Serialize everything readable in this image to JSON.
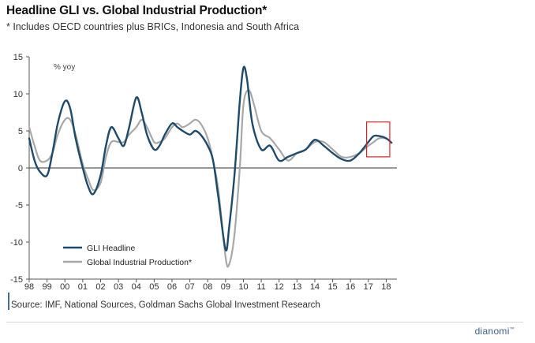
{
  "header": {
    "title": "Headline GLI vs. Global Industrial Production*",
    "subtitle": "* Includes OECD countries plus BRICs, Indonesia and South Africa"
  },
  "footer": {
    "source": "Source: IMF, National Sources, Goldman Sachs Global Investment Research",
    "brand": "dianomi",
    "brand_mark": "™"
  },
  "chart_data": {
    "type": "line",
    "title": "Headline GLI vs. Global Industrial Production*",
    "unit_label": "% yoy",
    "ylim": [
      -15,
      15
    ],
    "yticks": [
      15,
      10,
      5,
      0,
      -5,
      -10,
      -15
    ],
    "xlim": [
      1998.0,
      2018.6
    ],
    "xticks": [
      {
        "x": 1998,
        "label": "98"
      },
      {
        "x": 1999,
        "label": "99"
      },
      {
        "x": 2000,
        "label": "00"
      },
      {
        "x": 2001,
        "label": "01"
      },
      {
        "x": 2002,
        "label": "02"
      },
      {
        "x": 2003,
        "label": "03"
      },
      {
        "x": 2004,
        "label": "04"
      },
      {
        "x": 2005,
        "label": "05"
      },
      {
        "x": 2006,
        "label": "06"
      },
      {
        "x": 2007,
        "label": "07"
      },
      {
        "x": 2008,
        "label": "08"
      },
      {
        "x": 2009,
        "label": "09"
      },
      {
        "x": 2010,
        "label": "10"
      },
      {
        "x": 2011,
        "label": "11"
      },
      {
        "x": 2012,
        "label": "12"
      },
      {
        "x": 2013,
        "label": "13"
      },
      {
        "x": 2014,
        "label": "14"
      },
      {
        "x": 2015,
        "label": "15"
      },
      {
        "x": 2016,
        "label": "16"
      },
      {
        "x": 2017,
        "label": "17"
      },
      {
        "x": 2018,
        "label": "18"
      }
    ],
    "grid": false,
    "legend_position": "bottom-left",
    "colors": {
      "gli": "#1e4a6b",
      "ip": "#a8a8a8",
      "highlight": "#e02020"
    },
    "highlight_box": {
      "x0": 2016.9,
      "x1": 2018.2,
      "y0": 1.5,
      "y1": 6.2
    },
    "series": [
      {
        "name": "GLI Headline",
        "x": [
          1998.0,
          1998.3,
          1998.6,
          1999.0,
          1999.3,
          1999.6,
          2000.0,
          2000.3,
          2000.6,
          2001.0,
          2001.3,
          2001.6,
          2002.0,
          2002.3,
          2002.6,
          2003.0,
          2003.3,
          2003.6,
          2004.0,
          2004.3,
          2004.6,
          2005.0,
          2005.3,
          2005.6,
          2006.0,
          2006.3,
          2006.6,
          2007.0,
          2007.3,
          2007.6,
          2008.0,
          2008.3,
          2008.6,
          2009.0,
          2009.2,
          2009.5,
          2009.8,
          2010.0,
          2010.2,
          2010.5,
          2011.0,
          2011.5,
          2012.0,
          2012.5,
          2013.0,
          2013.5,
          2014.0,
          2014.5,
          2015.0,
          2015.5,
          2016.0,
          2016.5,
          2017.0,
          2017.3,
          2017.6,
          2018.0,
          2018.3
        ],
        "y": [
          4.0,
          1.0,
          -0.5,
          -1.0,
          2.0,
          6.0,
          9.0,
          8.0,
          4.0,
          0.0,
          -2.5,
          -3.5,
          -1.0,
          3.0,
          5.5,
          4.0,
          3.0,
          5.5,
          9.5,
          7.5,
          4.5,
          2.5,
          3.0,
          4.5,
          6.0,
          5.5,
          5.0,
          4.5,
          5.0,
          4.5,
          3.0,
          1.0,
          -4.0,
          -11.0,
          -8.0,
          -1.0,
          9.0,
          13.5,
          12.0,
          6.0,
          2.5,
          3.0,
          1.0,
          1.5,
          2.0,
          2.5,
          3.8,
          3.0,
          2.0,
          1.2,
          1.0,
          2.0,
          3.5,
          4.3,
          4.3,
          4.0,
          3.4
        ]
      },
      {
        "name": "Global Industrial Production*",
        "x": [
          1998.0,
          1998.3,
          1998.6,
          1999.0,
          1999.3,
          1999.6,
          2000.0,
          2000.3,
          2000.6,
          2001.0,
          2001.3,
          2001.6,
          2002.0,
          2002.3,
          2002.6,
          2003.0,
          2003.3,
          2003.6,
          2004.0,
          2004.3,
          2004.6,
          2005.0,
          2005.3,
          2005.6,
          2006.0,
          2006.3,
          2006.6,
          2007.0,
          2007.3,
          2007.6,
          2008.0,
          2008.3,
          2008.6,
          2009.0,
          2009.2,
          2009.5,
          2009.8,
          2010.0,
          2010.3,
          2010.6,
          2011.0,
          2011.5,
          2012.0,
          2012.5,
          2013.0,
          2013.5,
          2014.0,
          2014.5,
          2015.0,
          2015.5,
          2016.0,
          2016.5,
          2017.0,
          2017.3,
          2017.6,
          2018.0
        ],
        "y": [
          5.5,
          3.0,
          1.0,
          1.0,
          2.0,
          4.5,
          6.5,
          6.5,
          4.5,
          0.5,
          -1.5,
          -3.0,
          -2.0,
          1.5,
          3.5,
          3.5,
          3.5,
          4.5,
          5.5,
          6.5,
          5.5,
          3.5,
          3.5,
          4.0,
          5.5,
          6.0,
          5.5,
          6.0,
          6.5,
          6.0,
          4.0,
          1.0,
          -3.0,
          -12.0,
          -13.0,
          -9.0,
          0.0,
          8.5,
          10.5,
          8.5,
          5.0,
          4.0,
          2.5,
          1.0,
          2.0,
          2.5,
          3.5,
          3.5,
          2.5,
          1.5,
          1.5,
          2.0,
          3.0,
          3.5,
          4.0,
          4.0
        ]
      }
    ]
  }
}
